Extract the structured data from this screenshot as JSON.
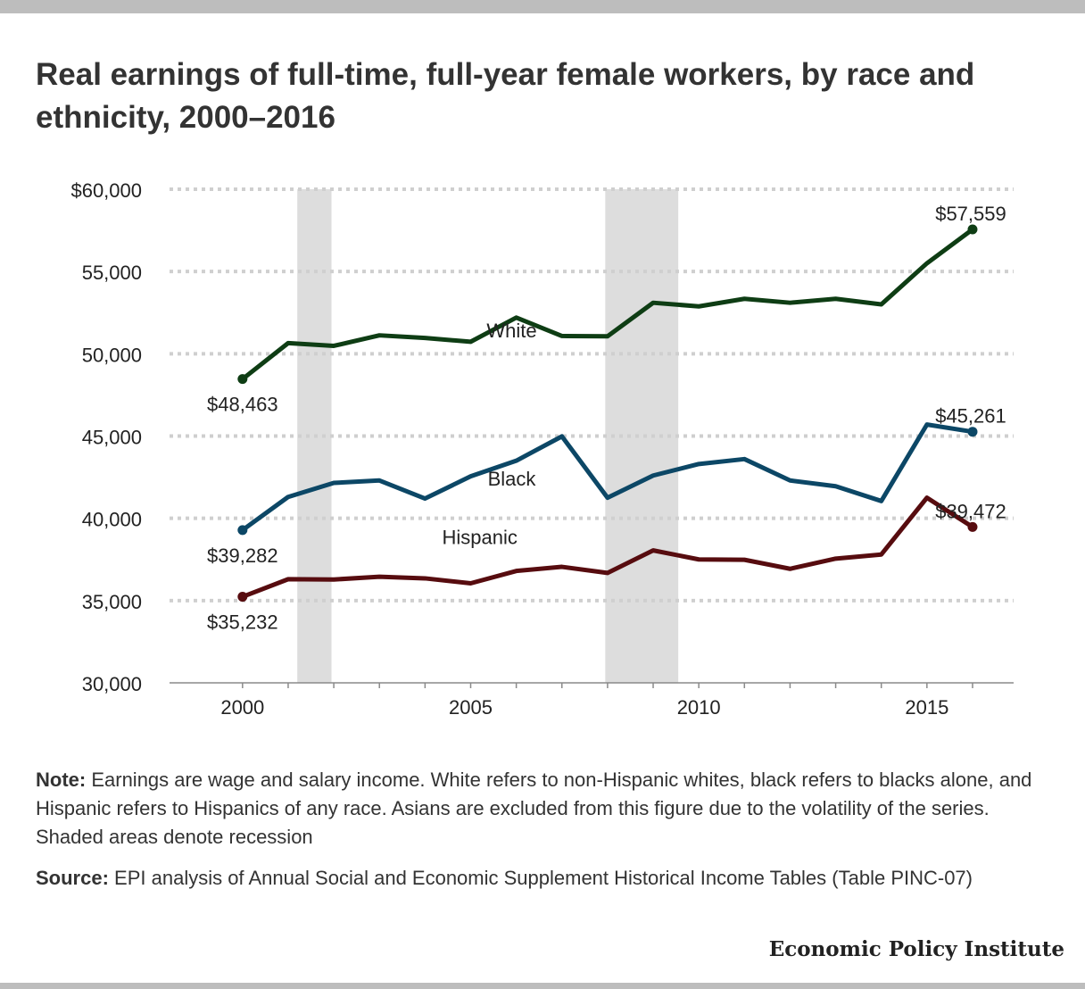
{
  "title": "Real earnings of full-time, full-year female workers, by race and ethnicity, 2000–2016",
  "note": {
    "label": "Note:",
    "text": " Earnings are wage and salary income. White refers to non-Hispanic whites, black refers to blacks alone, and Hispanic refers to Hispanics of any race. Asians are excluded from this figure due to the volatility of the series. Shaded areas denote recession"
  },
  "source": {
    "label": "Source:",
    "text": " EPI analysis of Annual Social and Economic Supplement Historical Income Tables (Table PINC-07)"
  },
  "credit": "Economic Policy Institute",
  "chart_data": {
    "type": "line",
    "x": [
      2000,
      2001,
      2002,
      2003,
      2004,
      2005,
      2006,
      2007,
      2008,
      2009,
      2010,
      2011,
      2012,
      2013,
      2014,
      2015,
      2016
    ],
    "xlim": [
      1998.4,
      2016.9
    ],
    "ylim": [
      30000,
      60000
    ],
    "x_ticks": [
      2000,
      2005,
      2010,
      2015
    ],
    "x_tick_labels": [
      "2000",
      "2005",
      "2010",
      "2015"
    ],
    "y_ticks": [
      30000,
      35000,
      40000,
      45000,
      50000,
      55000,
      60000
    ],
    "y_tick_labels": [
      "30,000",
      "35,000",
      "40,000",
      "45,000",
      "50,000",
      "55,000",
      "$60,000"
    ],
    "grid": "horizontal dotted",
    "recessions": [
      [
        2001.2,
        2001.95
      ],
      [
        2007.95,
        2009.55
      ]
    ],
    "series": [
      {
        "name": "White",
        "color": "#0e3d14",
        "values": [
          48463,
          50650,
          50480,
          51120,
          50960,
          50730,
          52200,
          51080,
          51060,
          53100,
          52880,
          53340,
          53100,
          53340,
          53000,
          55500,
          57559
        ],
        "start_label": "$48,463",
        "end_label": "$57,559"
      },
      {
        "name": "Black",
        "color": "#0c4766",
        "values": [
          39282,
          41300,
          42150,
          42300,
          41200,
          42550,
          43500,
          44980,
          41250,
          42600,
          43300,
          43600,
          42300,
          41950,
          41050,
          45700,
          45261
        ],
        "start_label": "$39,282",
        "end_label": "$45,261"
      },
      {
        "name": "Hispanic",
        "color": "#570c0f",
        "values": [
          35232,
          36300,
          36280,
          36450,
          36350,
          36050,
          36800,
          37050,
          36680,
          38050,
          37500,
          37480,
          36930,
          37550,
          37800,
          41250,
          39472
        ],
        "start_label": "$35,232",
        "end_label": "$39,472"
      }
    ]
  }
}
